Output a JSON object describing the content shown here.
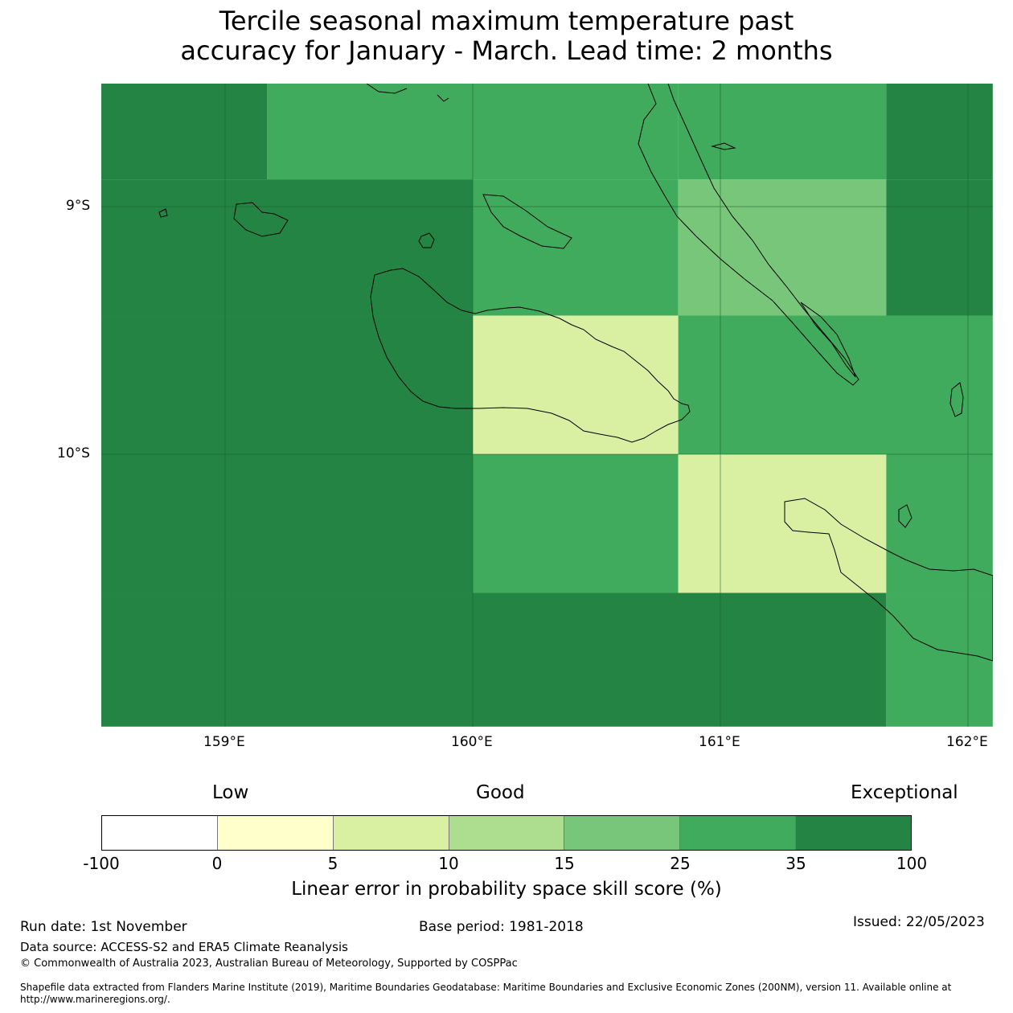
{
  "title": {
    "line1": "Tercile seasonal maximum temperature past",
    "line2": "accuracy for January - March. Lead time: 2 months"
  },
  "map": {
    "lon_labels": [
      "159°E",
      "160°E",
      "161°E",
      "162°E"
    ],
    "lat_labels": [
      "9°S",
      "10°S"
    ],
    "cells": [
      {
        "lon": [
          158.5,
          159.17
        ],
        "lat": [
          -8.5,
          -8.89
        ],
        "category": "35-100"
      },
      {
        "lon": [
          159.17,
          160.0
        ],
        "lat": [
          -8.5,
          -8.89
        ],
        "category": "25-35"
      },
      {
        "lon": [
          160.0,
          160.83
        ],
        "lat": [
          -8.5,
          -8.89
        ],
        "category": "25-35"
      },
      {
        "lon": [
          160.83,
          161.67
        ],
        "lat": [
          -8.5,
          -8.89
        ],
        "category": "25-35"
      },
      {
        "lon": [
          161.67,
          162.1
        ],
        "lat": [
          -8.5,
          -8.89
        ],
        "category": "35-100"
      },
      {
        "lon": [
          158.5,
          160.0
        ],
        "lat": [
          -8.89,
          -9.44
        ],
        "category": "35-100"
      },
      {
        "lon": [
          160.0,
          160.83
        ],
        "lat": [
          -8.89,
          -9.44
        ],
        "category": "25-35"
      },
      {
        "lon": [
          160.83,
          161.67
        ],
        "lat": [
          -8.89,
          -9.44
        ],
        "category": "15-25"
      },
      {
        "lon": [
          161.67,
          162.1
        ],
        "lat": [
          -8.89,
          -9.44
        ],
        "category": "35-100"
      },
      {
        "lon": [
          158.5,
          160.0
        ],
        "lat": [
          -9.44,
          -10.0
        ],
        "category": "35-100"
      },
      {
        "lon": [
          160.0,
          160.83
        ],
        "lat": [
          -9.44,
          -10.0
        ],
        "category": "5-10"
      },
      {
        "lon": [
          160.83,
          162.1
        ],
        "lat": [
          -9.44,
          -10.0
        ],
        "category": "25-35"
      },
      {
        "lon": [
          158.5,
          160.0
        ],
        "lat": [
          -10.0,
          -10.56
        ],
        "category": "35-100"
      },
      {
        "lon": [
          160.0,
          160.83
        ],
        "lat": [
          -10.0,
          -10.56
        ],
        "category": "25-35"
      },
      {
        "lon": [
          160.83,
          161.67
        ],
        "lat": [
          -10.0,
          -10.56
        ],
        "category": "5-10"
      },
      {
        "lon": [
          161.67,
          162.1
        ],
        "lat": [
          -10.0,
          -10.56
        ],
        "category": "25-35"
      },
      {
        "lon": [
          158.5,
          161.67
        ],
        "lat": [
          -10.56,
          -11.1
        ],
        "category": "35-100"
      },
      {
        "lon": [
          161.67,
          162.1
        ],
        "lat": [
          -10.56,
          -11.1
        ],
        "category": "25-35"
      }
    ]
  },
  "legend": {
    "words": {
      "low": "Low",
      "good": "Good",
      "exceptional": "Exceptional"
    },
    "ticks": [
      "-100",
      "0",
      "5",
      "10",
      "15",
      "25",
      "35",
      "100"
    ],
    "colors": [
      "#ffffff",
      "#ffffcc",
      "#d9f0a3",
      "#addd8e",
      "#78c679",
      "#41ab5d",
      "#238443"
    ],
    "label": "Linear error in probability space skill score (%)"
  },
  "footer": {
    "run_date": "Run date: 1st November",
    "base_period": "Base period: 1981-2018",
    "issued": "Issued: 22/05/2023",
    "data_source": "Data source: ACCESS-S2 and ERA5 Climate Reanalysis",
    "copyright": "© Commonwealth of Australia 2023, Australian Bureau of Meteorology, Supported by COSPPac",
    "shapefile_line1": "Shapefile data extracted from Flanders Marine Institute (2019), Maritime Boundaries Geodatabase: Maritime Boundaries and Exclusive Economic Zones (200NM), version 11. Available online at",
    "shapefile_line2": "http://www.marineregions.org/."
  }
}
